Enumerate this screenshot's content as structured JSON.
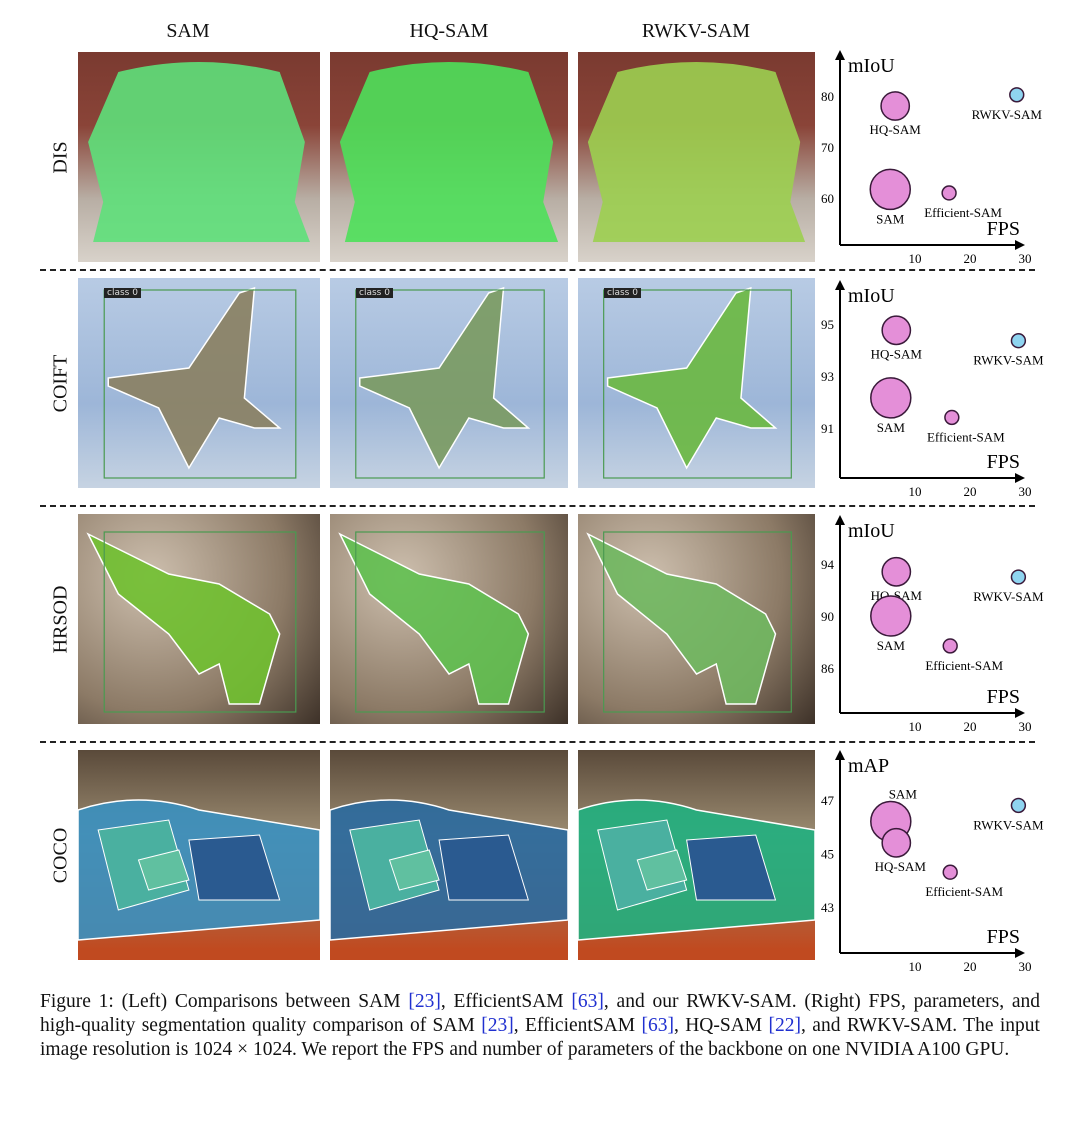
{
  "columns": [
    "SAM",
    "HQ-SAM",
    "RWKV-SAM"
  ],
  "rows": [
    {
      "label": "DIS",
      "panel_tag": ""
    },
    {
      "label": "COIFT",
      "panel_tag": "class 0"
    },
    {
      "label": "HRSOD",
      "panel_tag": ""
    },
    {
      "label": "COCO",
      "panel_tag": ""
    }
  ],
  "chart_data": [
    {
      "type": "scatter",
      "ylabel": "mIoU",
      "xlabel": "FPS",
      "xticks": [
        10,
        20,
        30
      ],
      "yticks": [
        60,
        70,
        80
      ],
      "xlim": [
        0,
        35
      ],
      "ylim": [
        52,
        87
      ],
      "points": [
        {
          "name": "HQ-SAM",
          "x": 6.4,
          "y": 78,
          "size": 0.5,
          "color": "#e48fd8"
        },
        {
          "name": "SAM",
          "x": 5.5,
          "y": 61.7,
          "size": 1.0,
          "color": "#e48fd8"
        },
        {
          "name": "Efficient-SAM",
          "x": 16.2,
          "y": 61,
          "size": 0.12,
          "color": "#e48fd8"
        },
        {
          "name": "RWKV-SAM",
          "x": 28.5,
          "y": 80.2,
          "size": 0.12,
          "color": "#8fd4f0"
        }
      ]
    },
    {
      "type": "scatter",
      "ylabel": "mIoU",
      "xlabel": "FPS",
      "xticks": [
        10,
        20,
        30
      ],
      "yticks": [
        91,
        93,
        95
      ],
      "xlim": [
        0,
        35
      ],
      "ylim": [
        89.3,
        96.3
      ],
      "points": [
        {
          "name": "HQ-SAM",
          "x": 6.6,
          "y": 94.75,
          "size": 0.5,
          "color": "#e48fd8"
        },
        {
          "name": "SAM",
          "x": 5.6,
          "y": 92.15,
          "size": 1.0,
          "color": "#e48fd8"
        },
        {
          "name": "Efficient-SAM",
          "x": 16.7,
          "y": 91.4,
          "size": 0.12,
          "color": "#e48fd8"
        },
        {
          "name": "RWKV-SAM",
          "x": 28.8,
          "y": 94.35,
          "size": 0.12,
          "color": "#8fd4f0"
        }
      ]
    },
    {
      "type": "scatter",
      "ylabel": "mIoU",
      "xlabel": "FPS",
      "xticks": [
        10,
        20,
        30
      ],
      "yticks": [
        86,
        90,
        94
      ],
      "xlim": [
        0,
        35
      ],
      "ylim": [
        83,
        97
      ],
      "points": [
        {
          "name": "HQ-SAM",
          "x": 6.6,
          "y": 93.4,
          "size": 0.5,
          "color": "#e48fd8"
        },
        {
          "name": "SAM",
          "x": 5.6,
          "y": 90,
          "size": 1.0,
          "color": "#e48fd8"
        },
        {
          "name": "Efficient-SAM",
          "x": 16.4,
          "y": 87.7,
          "size": 0.12,
          "color": "#e48fd8"
        },
        {
          "name": "RWKV-SAM",
          "x": 28.8,
          "y": 93.0,
          "size": 0.12,
          "color": "#8fd4f0"
        }
      ]
    },
    {
      "type": "scatter",
      "ylabel": "mAP",
      "xlabel": "FPS",
      "xticks": [
        10,
        20,
        30
      ],
      "yticks": [
        43,
        45,
        47
      ],
      "xlim": [
        0,
        35
      ],
      "ylim": [
        41.5,
        48.5
      ],
      "points": [
        {
          "name": "SAM",
          "x": 5.6,
          "y": 46.2,
          "size": 1.0,
          "color": "#e48fd8"
        },
        {
          "name": "HQ-SAM",
          "x": 6.6,
          "y": 45.4,
          "size": 0.5,
          "color": "#e48fd8"
        },
        {
          "name": "Efficient-SAM",
          "x": 16.4,
          "y": 44.3,
          "size": 0.12,
          "color": "#e48fd8"
        },
        {
          "name": "RWKV-SAM",
          "x": 28.8,
          "y": 46.8,
          "size": 0.12,
          "color": "#8fd4f0"
        }
      ]
    }
  ],
  "caption": {
    "t1": "Figure 1: (Left) Comparisons between SAM ",
    "r1": "[23]",
    "t2": ", EfficientSAM ",
    "r2": "[63]",
    "t3": ", and our RWKV-SAM. (Right) FPS, parameters, and high-quality segmentation quality comparison of SAM ",
    "r3": "[23]",
    "t4": ", EfficientSAM ",
    "r4": "[63]",
    "t5": ", HQ-SAM ",
    "r5": "[22]",
    "t6": ", and RWKV-SAM. The input image resolution is 1024 × 1024. We report the FPS and number of parameters of the backbone on one NVIDIA A100 GPU."
  },
  "colors": {
    "ref": "#2030d0",
    "small_bubble": "#e48fd8",
    "rwkv_bubble": "#8fd4f0"
  }
}
